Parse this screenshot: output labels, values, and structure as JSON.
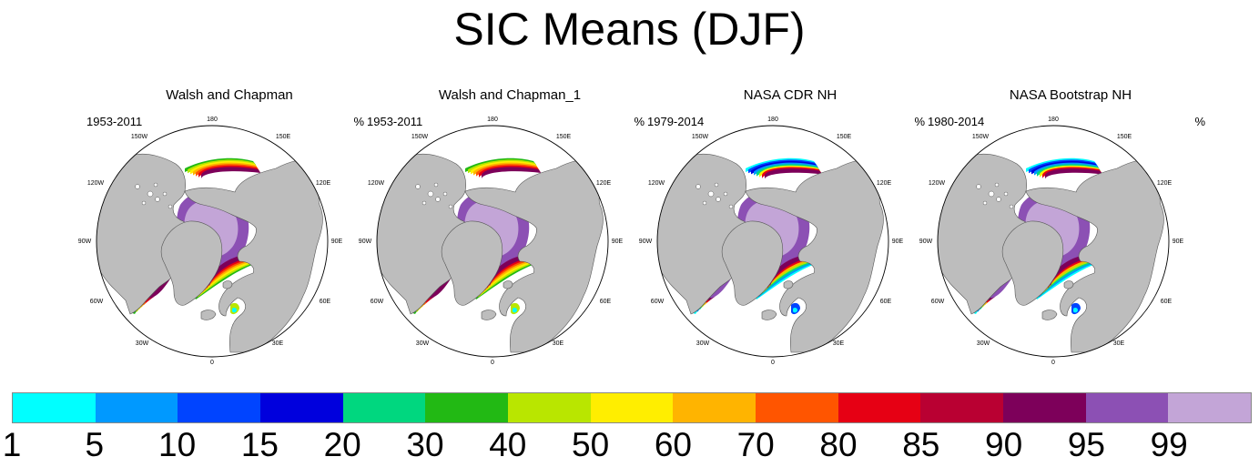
{
  "title": "SIC Means (DJF)",
  "units_label": "%",
  "longitude_labels": [
    "180",
    "150E",
    "120E",
    "90E",
    "60E",
    "30E",
    "0",
    "30W",
    "60W",
    "90W",
    "120W",
    "150W"
  ],
  "panels": [
    {
      "title": "Walsh and Chapman",
      "period": "1953-2011",
      "unit": "%"
    },
    {
      "title": "Walsh and Chapman_1",
      "period": "1953-2011",
      "unit": "%"
    },
    {
      "title": "NASA CDR NH",
      "period": "1979-2014",
      "unit": "%"
    },
    {
      "title": "NASA Bootstrap NH",
      "period": "1980-2014",
      "unit": "%"
    }
  ],
  "colorbar": {
    "labels": [
      "1",
      "5",
      "10",
      "15",
      "20",
      "30",
      "40",
      "50",
      "60",
      "70",
      "80",
      "85",
      "90",
      "95",
      "99"
    ],
    "colors": [
      "#00ffff",
      "#0099ff",
      "#0044ff",
      "#0000dd",
      "#00d77f",
      "#22b914",
      "#b9e600",
      "#ffee00",
      "#ffb400",
      "#ff5500",
      "#e60014",
      "#b90032",
      "#7d005a",
      "#8c50b4",
      "#c3a5d7"
    ]
  },
  "colors": {
    "land": "#bdbdbd",
    "ocean": "#ffffff",
    "ice_core": "#c3a5d7",
    "ice_mid": "#8c50b4"
  }
}
